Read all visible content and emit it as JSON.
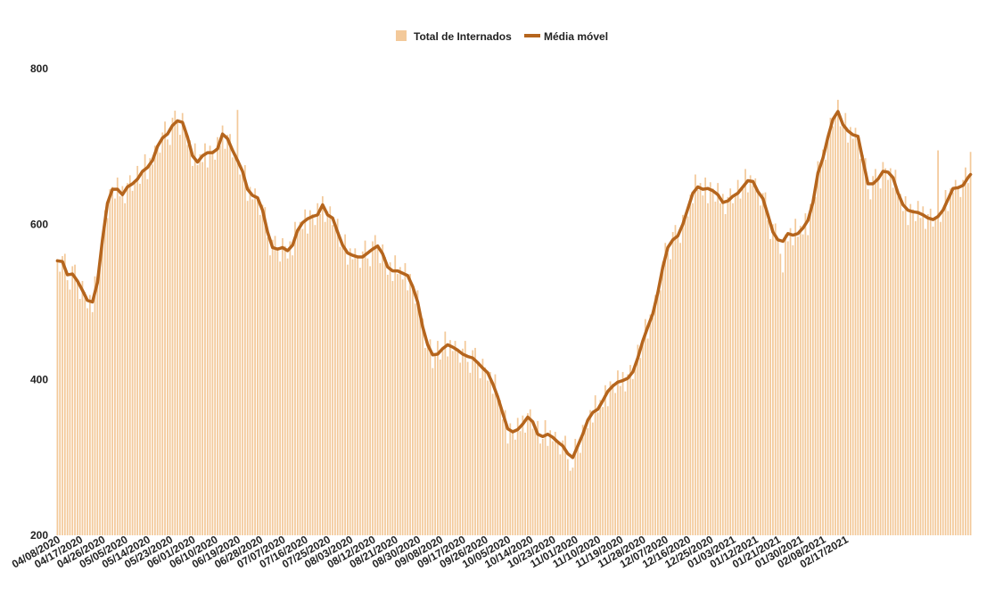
{
  "chart_data": {
    "type": "bar",
    "colors": {
      "bars": "#f3c99a",
      "line": "#b5651d"
    },
    "legend": {
      "position": "top-center",
      "items": [
        {
          "label": "Total de Internados",
          "kind": "bar"
        },
        {
          "label": "Média móvel",
          "kind": "line"
        }
      ]
    },
    "ylim": [
      200,
      800
    ],
    "yticks": [
      200,
      400,
      600,
      800
    ],
    "grid": false,
    "start_date": "04/08/2020",
    "x_tick_labels": [
      "04/08/2020",
      "04/17/2020",
      "04/26/2020",
      "05/05/2020",
      "05/14/2020",
      "05/23/2020",
      "06/01/2020",
      "06/10/2020",
      "06/19/2020",
      "06/28/2020",
      "07/07/2020",
      "07/16/2020",
      "07/25/2020",
      "08/03/2020",
      "08/12/2020",
      "08/21/2020",
      "08/30/2020",
      "09/08/2020",
      "09/17/2020",
      "09/26/2020",
      "10/05/2020",
      "10/14/2020",
      "10/23/2020",
      "11/01/2020",
      "11/10/2020",
      "11/19/2020",
      "11/28/2020",
      "12/07/2020",
      "12/16/2020",
      "12/25/2020",
      "01/03/2021",
      "01/12/2021",
      "01/21/2021",
      "01/30/2021",
      "02/08/2021",
      "02/17/2021"
    ],
    "series": [
      {
        "name": "Média móvel",
        "type": "line",
        "anchors": [
          [
            0,
            553
          ],
          [
            2,
            552
          ],
          [
            4,
            535
          ],
          [
            6,
            536
          ],
          [
            8,
            527
          ],
          [
            10,
            515
          ],
          [
            12,
            502
          ],
          [
            14,
            500
          ],
          [
            16,
            525
          ],
          [
            18,
            580
          ],
          [
            20,
            627
          ],
          [
            22,
            645
          ],
          [
            24,
            645
          ],
          [
            26,
            638
          ],
          [
            28,
            648
          ],
          [
            30,
            652
          ],
          [
            32,
            658
          ],
          [
            34,
            668
          ],
          [
            36,
            673
          ],
          [
            38,
            682
          ],
          [
            40,
            700
          ],
          [
            42,
            711
          ],
          [
            44,
            716
          ],
          [
            46,
            727
          ],
          [
            48,
            733
          ],
          [
            50,
            731
          ],
          [
            52,
            712
          ],
          [
            54,
            688
          ],
          [
            56,
            680
          ],
          [
            58,
            688
          ],
          [
            60,
            692
          ],
          [
            62,
            692
          ],
          [
            64,
            697
          ],
          [
            66,
            716
          ],
          [
            68,
            710
          ],
          [
            70,
            695
          ],
          [
            72,
            682
          ],
          [
            74,
            668
          ],
          [
            76,
            645
          ],
          [
            78,
            637
          ],
          [
            80,
            634
          ],
          [
            82,
            618
          ],
          [
            84,
            590
          ],
          [
            86,
            570
          ],
          [
            88,
            568
          ],
          [
            90,
            570
          ],
          [
            92,
            566
          ],
          [
            94,
            573
          ],
          [
            96,
            592
          ],
          [
            98,
            602
          ],
          [
            100,
            607
          ],
          [
            102,
            610
          ],
          [
            104,
            612
          ],
          [
            106,
            625
          ],
          [
            108,
            612
          ],
          [
            110,
            608
          ],
          [
            112,
            590
          ],
          [
            114,
            573
          ],
          [
            116,
            563
          ],
          [
            118,
            560
          ],
          [
            120,
            558
          ],
          [
            122,
            558
          ],
          [
            124,
            563
          ],
          [
            126,
            568
          ],
          [
            128,
            572
          ],
          [
            130,
            562
          ],
          [
            132,
            545
          ],
          [
            134,
            540
          ],
          [
            136,
            540
          ],
          [
            138,
            537
          ],
          [
            140,
            534
          ],
          [
            142,
            520
          ],
          [
            144,
            500
          ],
          [
            146,
            468
          ],
          [
            148,
            445
          ],
          [
            150,
            432
          ],
          [
            152,
            433
          ],
          [
            154,
            440
          ],
          [
            156,
            445
          ],
          [
            158,
            442
          ],
          [
            160,
            438
          ],
          [
            162,
            433
          ],
          [
            164,
            430
          ],
          [
            166,
            428
          ],
          [
            168,
            422
          ],
          [
            170,
            415
          ],
          [
            172,
            409
          ],
          [
            174,
            395
          ],
          [
            176,
            378
          ],
          [
            178,
            357
          ],
          [
            180,
            337
          ],
          [
            182,
            333
          ],
          [
            184,
            336
          ],
          [
            186,
            343
          ],
          [
            188,
            352
          ],
          [
            190,
            346
          ],
          [
            192,
            330
          ],
          [
            194,
            327
          ],
          [
            196,
            330
          ],
          [
            198,
            326
          ],
          [
            200,
            320
          ],
          [
            202,
            315
          ],
          [
            204,
            305
          ],
          [
            206,
            300
          ],
          [
            208,
            315
          ],
          [
            210,
            330
          ],
          [
            212,
            348
          ],
          [
            214,
            358
          ],
          [
            216,
            362
          ],
          [
            218,
            373
          ],
          [
            220,
            385
          ],
          [
            222,
            392
          ],
          [
            224,
            397
          ],
          [
            226,
            399
          ],
          [
            228,
            402
          ],
          [
            230,
            410
          ],
          [
            232,
            428
          ],
          [
            234,
            450
          ],
          [
            236,
            468
          ],
          [
            238,
            485
          ],
          [
            240,
            512
          ],
          [
            242,
            545
          ],
          [
            244,
            570
          ],
          [
            246,
            580
          ],
          [
            248,
            585
          ],
          [
            250,
            600
          ],
          [
            252,
            620
          ],
          [
            254,
            640
          ],
          [
            256,
            648
          ],
          [
            258,
            645
          ],
          [
            260,
            646
          ],
          [
            262,
            643
          ],
          [
            264,
            638
          ],
          [
            266,
            628
          ],
          [
            268,
            630
          ],
          [
            270,
            636
          ],
          [
            272,
            640
          ],
          [
            274,
            648
          ],
          [
            276,
            656
          ],
          [
            278,
            655
          ],
          [
            280,
            642
          ],
          [
            282,
            633
          ],
          [
            284,
            612
          ],
          [
            286,
            590
          ],
          [
            288,
            580
          ],
          [
            290,
            578
          ],
          [
            292,
            588
          ],
          [
            294,
            586
          ],
          [
            296,
            588
          ],
          [
            298,
            595
          ],
          [
            300,
            605
          ],
          [
            302,
            628
          ],
          [
            304,
            666
          ],
          [
            306,
            685
          ],
          [
            308,
            712
          ],
          [
            310,
            735
          ],
          [
            312,
            745
          ],
          [
            314,
            728
          ],
          [
            316,
            720
          ],
          [
            318,
            715
          ],
          [
            320,
            713
          ],
          [
            322,
            682
          ],
          [
            324,
            652
          ],
          [
            326,
            652
          ],
          [
            328,
            658
          ],
          [
            330,
            668
          ],
          [
            332,
            667
          ],
          [
            334,
            660
          ],
          [
            336,
            640
          ],
          [
            338,
            625
          ],
          [
            340,
            618
          ],
          [
            342,
            616
          ],
          [
            344,
            615
          ],
          [
            346,
            612
          ],
          [
            348,
            608
          ],
          [
            350,
            606
          ],
          [
            352,
            610
          ],
          [
            354,
            618
          ],
          [
            356,
            632
          ],
          [
            358,
            646
          ],
          [
            360,
            647
          ],
          [
            362,
            650
          ],
          [
            364,
            660
          ],
          [
            365,
            664
          ]
        ]
      },
      {
        "name": "Total de Internados",
        "type": "bar",
        "count": 366,
        "deviation_pattern": [
          2,
          -14,
          7,
          18,
          -7,
          -20,
          10,
          16,
          -2,
          -17,
          12,
          4,
          -10,
          8,
          -13,
          20,
          -4,
          6,
          -8,
          14,
          -19,
          9,
          3,
          -12,
          15,
          -6,
          11,
          -16,
          5,
          13,
          -9,
          1,
          17,
          -11,
          -3,
          19,
          -15,
          7,
          -5,
          10
        ],
        "spikes": [
          [
            72,
            747
          ],
          [
            290,
            538
          ],
          [
            352,
            695
          ],
          [
            365,
            693
          ],
          [
            312,
            760
          ],
          [
            150,
            415
          ],
          [
            206,
            287
          ]
        ]
      }
    ]
  }
}
